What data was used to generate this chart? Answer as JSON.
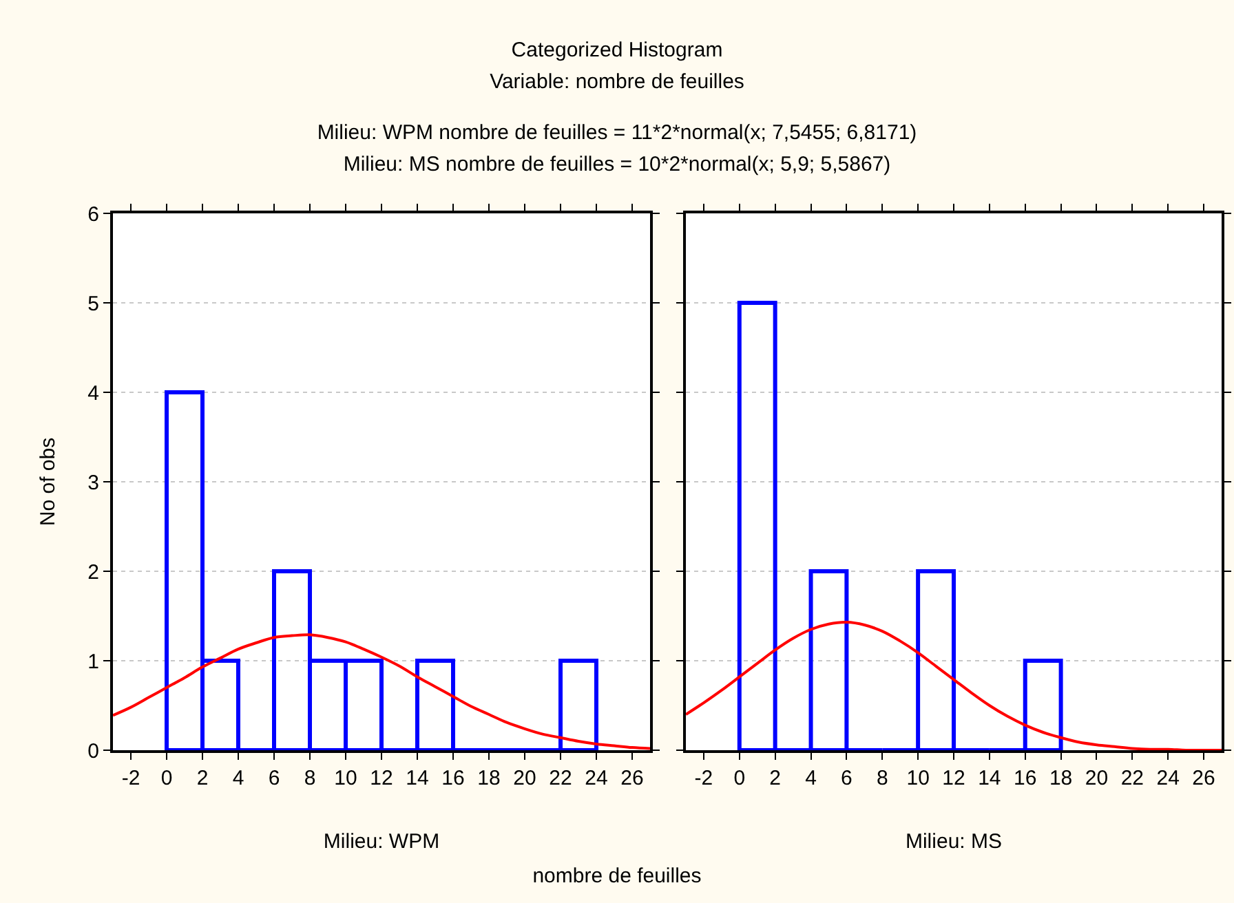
{
  "chart_data": [
    {
      "type": "histogram",
      "title": "Categorized Histogram",
      "subtitle": "Variable: nombre de feuilles",
      "xlabel": "Milieu: WPM",
      "ylabel": "No of obs",
      "annotations": [
        "Milieu: WPM nombre de feuilles = 11*2*normal(x; 7,5455; 6,8171)",
        "Milieu: MS nombre de feuilles = 10*2*normal(x; 5,9; 5,5867)",
        "nombre de feuilles"
      ],
      "bins": [
        0,
        2,
        4,
        6,
        8,
        10,
        12,
        14,
        16,
        18,
        20,
        22,
        24
      ],
      "values": [
        4,
        1,
        0,
        2,
        1,
        1,
        0,
        1,
        0,
        0,
        0,
        1
      ],
      "color": "#0000ff",
      "series": [
        {
          "type": "line",
          "color": "#ff0000",
          "x": [
            -3,
            -2,
            -1,
            0,
            1,
            2,
            3,
            4,
            5,
            6,
            7,
            8,
            9,
            10,
            11,
            12,
            13,
            14,
            15,
            16,
            17,
            18,
            19,
            20,
            21,
            22,
            23,
            24,
            25,
            26,
            27
          ],
          "values": [
            0.39,
            0.48,
            0.59,
            0.7,
            0.81,
            0.93,
            1.03,
            1.13,
            1.2,
            1.26,
            1.28,
            1.29,
            1.26,
            1.21,
            1.13,
            1.04,
            0.94,
            0.82,
            0.71,
            0.6,
            0.49,
            0.4,
            0.31,
            0.24,
            0.18,
            0.14,
            0.1,
            0.07,
            0.05,
            0.03,
            0.02
          ]
        }
      ],
      "xlim": [
        -3,
        27
      ],
      "xticks": [
        -2,
        0,
        2,
        4,
        6,
        8,
        10,
        12,
        14,
        16,
        18,
        20,
        22,
        24,
        26
      ],
      "ylim": [
        0,
        6
      ],
      "yticks": [
        0,
        1,
        2,
        3,
        4,
        5,
        6
      ],
      "grid": "y",
      "legend": false
    },
    {
      "type": "histogram",
      "xlabel": "Milieu: MS",
      "bins": [
        0,
        2,
        4,
        6,
        8,
        10,
        12,
        14,
        16,
        18
      ],
      "values": [
        5,
        0,
        2,
        0,
        0,
        2,
        0,
        0,
        1
      ],
      "color": "#0000ff",
      "series": [
        {
          "type": "line",
          "color": "#ff0000",
          "x": [
            -3,
            -2,
            -1,
            0,
            1,
            2,
            3,
            4,
            5,
            6,
            7,
            8,
            9,
            10,
            11,
            12,
            13,
            14,
            15,
            16,
            17,
            18,
            19,
            20,
            21,
            22,
            23,
            24,
            25,
            26,
            27
          ],
          "values": [
            0.4,
            0.53,
            0.67,
            0.82,
            0.97,
            1.12,
            1.25,
            1.35,
            1.41,
            1.43,
            1.4,
            1.33,
            1.22,
            1.09,
            0.94,
            0.79,
            0.64,
            0.5,
            0.38,
            0.28,
            0.2,
            0.14,
            0.09,
            0.06,
            0.04,
            0.02,
            0.01,
            0.01,
            0,
            0,
            0
          ]
        }
      ],
      "xlim": [
        -3,
        27
      ],
      "xticks": [
        -2,
        0,
        2,
        4,
        6,
        8,
        10,
        12,
        14,
        16,
        18,
        20,
        22,
        24,
        26
      ],
      "ylim": [
        0,
        6
      ],
      "yticks": [
        0,
        1,
        2,
        3,
        4,
        5,
        6
      ],
      "grid": "y",
      "legend": false,
      "tick_labels": "x"
    }
  ]
}
